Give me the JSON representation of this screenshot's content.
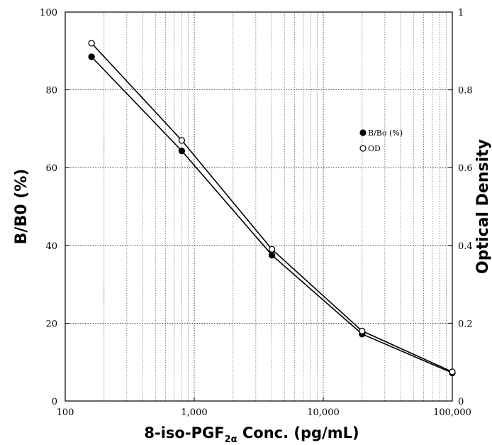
{
  "chart_data": {
    "type": "line",
    "x": [
      160,
      800,
      4000,
      20000,
      100000
    ],
    "x_scale": "log",
    "xlim": [
      100,
      100000
    ],
    "x_tick_labels": [
      "100",
      "1,000",
      "10,000",
      "100,000"
    ],
    "xlabel_parts": {
      "prefix": "8-iso-PGF",
      "subscript": "2α",
      "suffix": " Conc. (pg/mL)"
    },
    "ylabel": "B/B0 (%)",
    "ylim": [
      0,
      100
    ],
    "y_tick_labels": [
      "0",
      "20",
      "40",
      "60",
      "80",
      "100"
    ],
    "y2label": "Optical Density",
    "y2lim": [
      0,
      1
    ],
    "y2_tick_labels": [
      "0",
      "0.2",
      "0.4",
      "0.6",
      "0.8",
      "1"
    ],
    "grid": true,
    "legend_position": "right",
    "series": [
      {
        "name": "B/Bo (%)",
        "axis": "left",
        "marker": "filled-circle",
        "values": [
          88.5,
          64.3,
          37.5,
          17.2,
          7.2
        ]
      },
      {
        "name": "OD",
        "axis": "right",
        "marker": "open-circle",
        "values": [
          0.92,
          0.67,
          0.39,
          0.18,
          0.075
        ]
      }
    ]
  }
}
